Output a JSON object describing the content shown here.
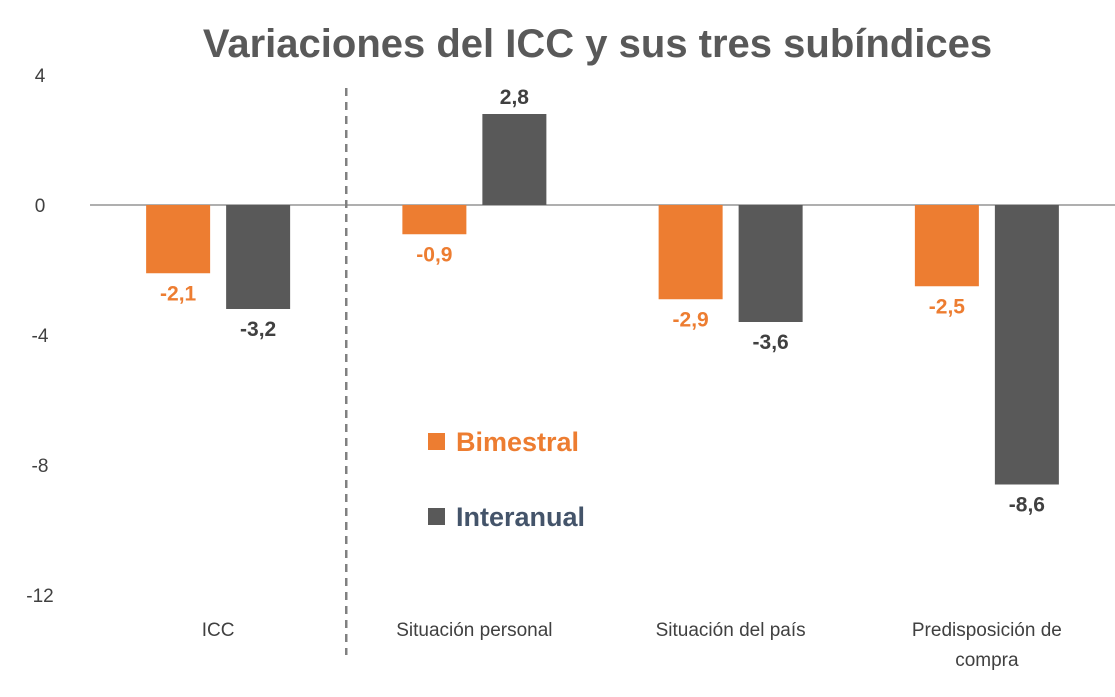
{
  "chart_data": {
    "type": "bar",
    "title": "Variaciones del ICC y sus tres subíndices",
    "categories": [
      "ICC",
      "Situación personal",
      "Situación del país",
      "Predisposición de compra"
    ],
    "series": [
      {
        "name": "Bimestral",
        "color": "#ED7D31",
        "values": [
          -2.1,
          -0.9,
          -2.9,
          -2.5
        ],
        "labels": [
          "-2,1",
          "-0,9",
          "-2,9",
          "-2,5"
        ]
      },
      {
        "name": "Interanual",
        "color": "#595959",
        "values": [
          -3.2,
          2.8,
          -3.6,
          -8.6
        ],
        "labels": [
          "-3,2",
          "2,8",
          "-3,6",
          "-8,6"
        ]
      }
    ],
    "ylim": [
      -12,
      4
    ],
    "yticks": [
      4,
      0,
      -4,
      -8,
      -12
    ],
    "ytick_labels": [
      "4",
      "0",
      "-4",
      "-8",
      "-12"
    ],
    "grid": false,
    "legend_position": "center",
    "separator": "dashed line after ICC",
    "label_colors": {
      "Bimestral": "#ED7D31",
      "Interanual": "#404040",
      "legend_interanual_text": "#44546A"
    }
  }
}
